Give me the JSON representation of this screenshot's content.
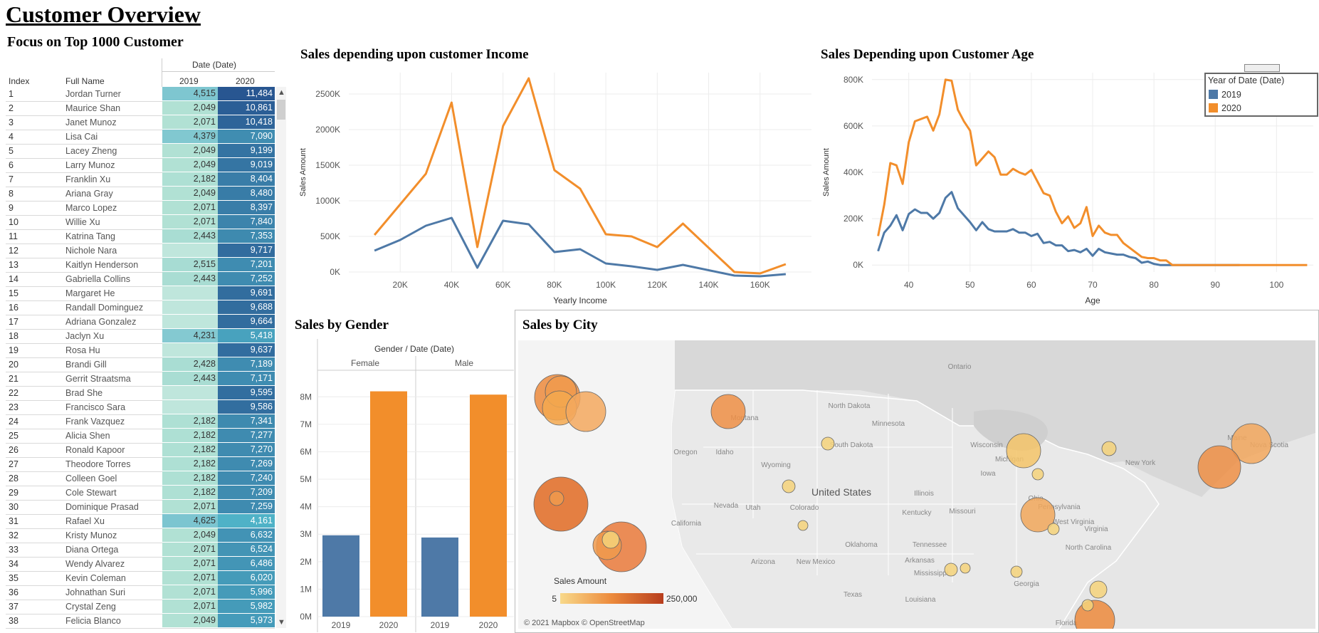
{
  "header": {
    "title": "Customer Overview",
    "subtitle": "Focus on Top 1000 Customer"
  },
  "table": {
    "date_header": "Date (Date)",
    "col_index": "Index",
    "col_name": "Full Name",
    "col_2019": "2019",
    "col_2020": "2020",
    "rows": [
      {
        "index": "1",
        "name": "Jordan Turner",
        "y2019": "4,515",
        "y2020": "11,484"
      },
      {
        "index": "2",
        "name": "Maurice Shan",
        "y2019": "2,049",
        "y2020": "10,861"
      },
      {
        "index": "3",
        "name": "Janet Munoz",
        "y2019": "2,071",
        "y2020": "10,418"
      },
      {
        "index": "4",
        "name": "Lisa Cai",
        "y2019": "4,379",
        "y2020": "7,090"
      },
      {
        "index": "5",
        "name": "Lacey Zheng",
        "y2019": "2,049",
        "y2020": "9,199"
      },
      {
        "index": "6",
        "name": "Larry Munoz",
        "y2019": "2,049",
        "y2020": "9,019"
      },
      {
        "index": "7",
        "name": "Franklin Xu",
        "y2019": "2,182",
        "y2020": "8,404"
      },
      {
        "index": "8",
        "name": "Ariana Gray",
        "y2019": "2,049",
        "y2020": "8,480"
      },
      {
        "index": "9",
        "name": "Marco Lopez",
        "y2019": "2,071",
        "y2020": "8,397"
      },
      {
        "index": "10",
        "name": "Willie Xu",
        "y2019": "2,071",
        "y2020": "7,840"
      },
      {
        "index": "11",
        "name": "Katrina Tang",
        "y2019": "2,443",
        "y2020": "7,353"
      },
      {
        "index": "12",
        "name": "Nichole Nara",
        "y2019": "",
        "y2020": "9,717"
      },
      {
        "index": "13",
        "name": "Kaitlyn Henderson",
        "y2019": "2,515",
        "y2020": "7,201"
      },
      {
        "index": "14",
        "name": "Gabriella Collins",
        "y2019": "2,443",
        "y2020": "7,252"
      },
      {
        "index": "15",
        "name": "Margaret He",
        "y2019": "",
        "y2020": "9,691"
      },
      {
        "index": "16",
        "name": "Randall Dominguez",
        "y2019": "",
        "y2020": "9,688"
      },
      {
        "index": "17",
        "name": "Adriana Gonzalez",
        "y2019": "",
        "y2020": "9,664"
      },
      {
        "index": "18",
        "name": "Jaclyn Xu",
        "y2019": "4,231",
        "y2020": "5,418"
      },
      {
        "index": "19",
        "name": "Rosa Hu",
        "y2019": "",
        "y2020": "9,637"
      },
      {
        "index": "20",
        "name": "Brandi Gill",
        "y2019": "2,428",
        "y2020": "7,189"
      },
      {
        "index": "21",
        "name": "Gerrit Straatsma",
        "y2019": "2,443",
        "y2020": "7,171"
      },
      {
        "index": "22",
        "name": "Brad She",
        "y2019": "",
        "y2020": "9,595"
      },
      {
        "index": "23",
        "name": "Francisco Sara",
        "y2019": "",
        "y2020": "9,586"
      },
      {
        "index": "24",
        "name": "Frank Vazquez",
        "y2019": "2,182",
        "y2020": "7,341"
      },
      {
        "index": "25",
        "name": "Alicia Shen",
        "y2019": "2,182",
        "y2020": "7,277"
      },
      {
        "index": "26",
        "name": "Ronald Kapoor",
        "y2019": "2,182",
        "y2020": "7,270"
      },
      {
        "index": "27",
        "name": "Theodore Torres",
        "y2019": "2,182",
        "y2020": "7,269"
      },
      {
        "index": "28",
        "name": "Colleen Goel",
        "y2019": "2,182",
        "y2020": "7,240"
      },
      {
        "index": "29",
        "name": "Cole Stewart",
        "y2019": "2,182",
        "y2020": "7,209"
      },
      {
        "index": "30",
        "name": "Dominique Prasad",
        "y2019": "2,071",
        "y2020": "7,259"
      },
      {
        "index": "31",
        "name": "Rafael Xu",
        "y2019": "4,625",
        "y2020": "4,161"
      },
      {
        "index": "32",
        "name": "Kristy Munoz",
        "y2019": "2,049",
        "y2020": "6,632"
      },
      {
        "index": "33",
        "name": "Diana Ortega",
        "y2019": "2,071",
        "y2020": "6,524"
      },
      {
        "index": "34",
        "name": "Wendy Alvarez",
        "y2019": "2,071",
        "y2020": "6,486"
      },
      {
        "index": "35",
        "name": "Kevin Coleman",
        "y2019": "2,071",
        "y2020": "6,020"
      },
      {
        "index": "36",
        "name": "Johnathan Suri",
        "y2019": "2,071",
        "y2020": "5,996"
      },
      {
        "index": "37",
        "name": "Crystal Zeng",
        "y2019": "2,071",
        "y2020": "5,982"
      },
      {
        "index": "38",
        "name": "Felicia Blanco",
        "y2019": "2,049",
        "y2020": "5,973"
      }
    ]
  },
  "colors": {
    "y2019": "#4e79a7",
    "y2020": "#f28e2b"
  },
  "legend": {
    "title": "Year of Date (Date)",
    "items": [
      {
        "label": "2019",
        "color": "#4e79a7"
      },
      {
        "label": "2020",
        "color": "#f28e2b"
      }
    ]
  },
  "map": {
    "title": "Sales by City",
    "legend_title": "Sales Amount",
    "legend_min": "5",
    "legend_max": "250,000",
    "attribution": "© 2021 Mapbox © OpenStreetMap",
    "labels": [
      "Ontario",
      "North Dakota",
      "Minnesota",
      "Montana",
      "South Dakota",
      "Wisconsin",
      "Michigan",
      "Idaho",
      "Oregon",
      "Wyoming",
      "Iowa",
      "New York",
      "Maine",
      "Nova Scotia",
      "Nevada",
      "Utah",
      "Colorado",
      "United States",
      "Illinois",
      "Ohio",
      "Pennsylvania",
      "Kentucky",
      "Missouri",
      "West Virginia",
      "Virginia",
      "Tennessee",
      "North Carolina",
      "California",
      "Arizona",
      "New Mexico",
      "Oklahoma",
      "Arkansas",
      "Mississippi",
      "Georgia",
      "Texas",
      "Louisiana",
      "Florida"
    ]
  },
  "chart_data": [
    {
      "type": "line",
      "title": "Sales depending upon customer Income",
      "xlabel": "Yearly Income",
      "ylabel": "Sales Amount",
      "x_ticks": [
        "20K",
        "40K",
        "60K",
        "80K",
        "100K",
        "120K",
        "140K",
        "160K"
      ],
      "y_ticks": [
        "0K",
        "500K",
        "1000K",
        "1500K",
        "2000K",
        "2500K"
      ],
      "xlim": [
        0,
        180000
      ],
      "ylim": [
        0,
        2800000
      ],
      "x": [
        10000,
        20000,
        30000,
        40000,
        50000,
        60000,
        70000,
        80000,
        90000,
        100000,
        110000,
        120000,
        130000,
        150000,
        160000,
        170000
      ],
      "series": [
        {
          "name": "2019",
          "values": [
            300000,
            450000,
            650000,
            760000,
            60000,
            720000,
            670000,
            280000,
            320000,
            120000,
            80000,
            30000,
            100000,
            -50000,
            -60000,
            -30000
          ]
        },
        {
          "name": "2020",
          "values": [
            520000,
            950000,
            1380000,
            2380000,
            350000,
            2050000,
            2720000,
            1430000,
            1170000,
            530000,
            500000,
            350000,
            680000,
            0,
            -20000,
            110000
          ]
        }
      ]
    },
    {
      "type": "line",
      "title": "Sales Depending upon Customer Age",
      "xlabel": "Age",
      "ylabel": "Sales Amount",
      "x_ticks": [
        "40",
        "50",
        "60",
        "70",
        "80",
        "90",
        "100"
      ],
      "y_ticks": [
        "0K",
        "200K",
        "400K",
        "600K",
        "800K"
      ],
      "xlim": [
        34,
        106
      ],
      "ylim": [
        -30000,
        830000
      ],
      "x": [
        35,
        36,
        37,
        38,
        39,
        40,
        41,
        42,
        43,
        44,
        45,
        46,
        47,
        48,
        49,
        50,
        51,
        52,
        53,
        54,
        55,
        56,
        57,
        58,
        59,
        60,
        61,
        62,
        63,
        64,
        65,
        66,
        67,
        68,
        69,
        70,
        71,
        72,
        73,
        74,
        75,
        76,
        77,
        78,
        79,
        80,
        81,
        82,
        83,
        84,
        85,
        86,
        87,
        88,
        89,
        90,
        91,
        92,
        93,
        94,
        95,
        96,
        97,
        98,
        99,
        100,
        101,
        102,
        103,
        104,
        105
      ],
      "series": [
        {
          "name": "2019",
          "values": [
            60000,
            140000,
            170000,
            215000,
            150000,
            220000,
            240000,
            225000,
            225000,
            200000,
            225000,
            290000,
            315000,
            245000,
            215000,
            185000,
            150000,
            185000,
            155000,
            145000,
            145000,
            145000,
            155000,
            140000,
            140000,
            125000,
            135000,
            95000,
            100000,
            85000,
            85000,
            60000,
            65000,
            55000,
            70000,
            40000,
            70000,
            55000,
            50000,
            45000,
            45000,
            35000,
            30000,
            10000,
            15000,
            5000,
            0,
            0,
            0,
            0,
            0,
            0,
            0,
            0,
            0,
            0,
            0,
            0,
            0,
            0,
            null,
            null,
            null,
            null,
            null,
            null,
            null,
            null,
            null,
            null,
            null
          ]
        },
        {
          "name": "2020",
          "values": [
            125000,
            260000,
            440000,
            430000,
            350000,
            530000,
            620000,
            630000,
            640000,
            580000,
            650000,
            800000,
            795000,
            670000,
            620000,
            580000,
            430000,
            460000,
            490000,
            465000,
            390000,
            390000,
            415000,
            400000,
            390000,
            410000,
            360000,
            310000,
            300000,
            230000,
            180000,
            210000,
            160000,
            180000,
            250000,
            125000,
            170000,
            140000,
            130000,
            130000,
            95000,
            75000,
            55000,
            35000,
            30000,
            30000,
            20000,
            20000,
            0,
            0,
            0,
            0,
            0,
            0,
            0,
            0,
            0,
            0,
            0,
            0,
            0,
            0,
            0,
            0,
            0,
            0,
            0,
            0,
            0,
            0,
            0
          ]
        }
      ]
    },
    {
      "type": "bar",
      "title": "Sales by Gender",
      "header": "Gender / Date (Date)",
      "groups": [
        "Female",
        "Male"
      ],
      "categories": [
        "2019",
        "2020"
      ],
      "y_ticks": [
        "0M",
        "1M",
        "2M",
        "3M",
        "4M",
        "5M",
        "6M",
        "7M",
        "8M"
      ],
      "ylim": [
        0,
        8500000
      ],
      "series": [
        {
          "name": "2019",
          "values": [
            2960000,
            2880000
          ]
        },
        {
          "name": "2020",
          "values": [
            8200000,
            8080000
          ]
        }
      ]
    }
  ]
}
